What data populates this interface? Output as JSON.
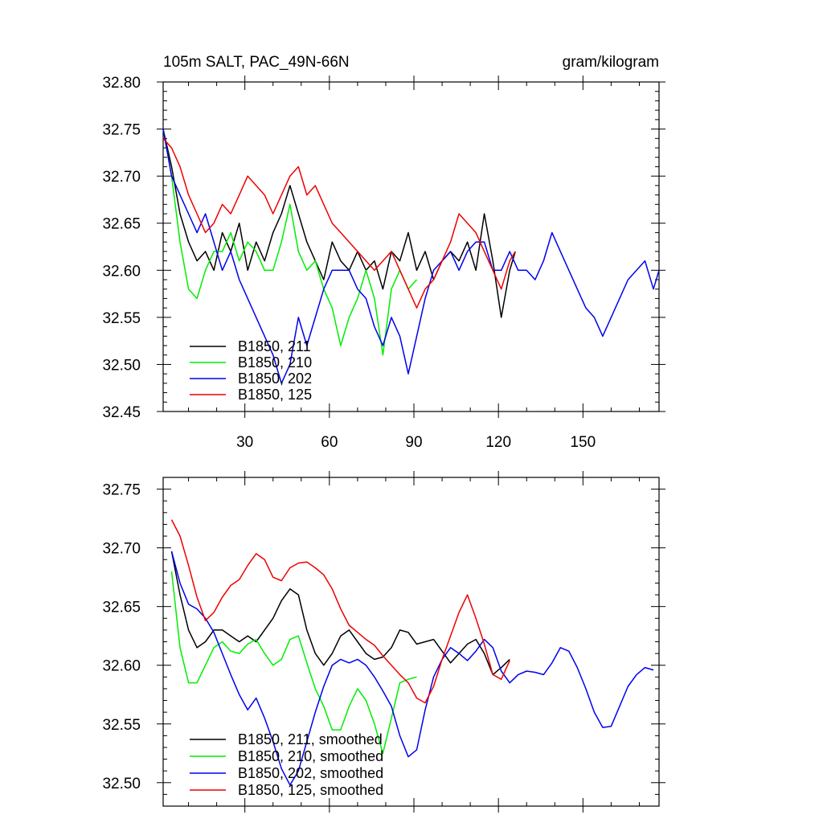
{
  "chart_data": [
    {
      "type": "line",
      "title": "105m SALT, PAC_49N-66N",
      "units": "gram/kilogram",
      "xlim": [
        1,
        177
      ],
      "ylim": [
        32.45,
        32.8
      ],
      "xticks": [
        30,
        60,
        90,
        120,
        150
      ],
      "yticks": [
        32.45,
        32.5,
        32.55,
        32.6,
        32.65,
        32.7,
        32.75,
        32.8
      ],
      "ytick_labels": [
        "32.45",
        "32.50",
        "32.55",
        "32.60",
        "32.65",
        "32.70",
        "32.75",
        "32.80"
      ],
      "legend_position": "lower-left",
      "series": [
        {
          "name": "B1850, 211",
          "color": "#000000",
          "x": [
            1,
            4,
            7,
            10,
            13,
            16,
            19,
            22,
            25,
            28,
            31,
            34,
            37,
            40,
            43,
            46,
            49,
            52,
            55,
            58,
            61,
            64,
            67,
            70,
            73,
            76,
            79,
            82,
            85,
            88,
            91,
            94,
            97,
            100,
            103,
            106,
            109,
            112,
            115,
            118,
            121,
            124,
            126
          ],
          "values": [
            32.75,
            32.71,
            32.66,
            32.63,
            32.61,
            32.62,
            32.6,
            32.64,
            32.62,
            32.65,
            32.6,
            32.63,
            32.61,
            32.64,
            32.66,
            32.69,
            32.66,
            32.63,
            32.61,
            32.59,
            32.63,
            32.61,
            32.6,
            32.62,
            32.6,
            32.61,
            32.58,
            32.62,
            32.61,
            32.64,
            32.6,
            32.62,
            32.59,
            32.61,
            32.62,
            32.61,
            32.63,
            32.6,
            32.66,
            32.61,
            32.55,
            32.6,
            32.62
          ]
        },
        {
          "name": "B1850, 210",
          "color": "#00ee00",
          "x": [
            1,
            4,
            7,
            10,
            13,
            16,
            19,
            22,
            25,
            28,
            31,
            34,
            37,
            40,
            43,
            46,
            49,
            52,
            55,
            58,
            61,
            64,
            67,
            70,
            73,
            76,
            79,
            82,
            85,
            88,
            91
          ],
          "values": [
            32.75,
            32.7,
            32.63,
            32.58,
            32.57,
            32.6,
            32.62,
            32.62,
            32.64,
            32.61,
            32.63,
            32.62,
            32.6,
            32.6,
            32.63,
            32.67,
            32.62,
            32.6,
            32.61,
            32.58,
            32.56,
            32.52,
            32.55,
            32.57,
            32.6,
            32.57,
            32.51,
            32.58,
            32.6,
            32.58,
            32.59
          ]
        },
        {
          "name": "B1850, 202",
          "color": "#0000ee",
          "x": [
            1,
            4,
            7,
            10,
            13,
            16,
            19,
            22,
            25,
            28,
            31,
            34,
            37,
            40,
            43,
            46,
            49,
            52,
            55,
            58,
            61,
            64,
            67,
            70,
            73,
            76,
            79,
            82,
            85,
            88,
            91,
            94,
            97,
            100,
            103,
            106,
            109,
            112,
            115,
            118,
            121,
            124,
            127,
            130,
            133,
            136,
            139,
            142,
            145,
            148,
            151,
            154,
            157,
            160,
            163,
            166,
            169,
            172,
            175,
            177
          ],
          "values": [
            32.75,
            32.7,
            32.68,
            32.66,
            32.64,
            32.66,
            32.63,
            32.6,
            32.62,
            32.59,
            32.57,
            32.55,
            32.53,
            32.51,
            32.48,
            32.5,
            32.55,
            32.52,
            32.55,
            32.58,
            32.6,
            32.6,
            32.6,
            32.58,
            32.57,
            32.54,
            32.52,
            32.55,
            32.53,
            32.49,
            32.53,
            32.57,
            32.6,
            32.61,
            32.62,
            32.6,
            32.62,
            32.63,
            32.63,
            32.6,
            32.6,
            32.62,
            32.6,
            32.6,
            32.59,
            32.61,
            32.64,
            32.62,
            32.6,
            32.58,
            32.56,
            32.55,
            32.53,
            32.55,
            32.57,
            32.59,
            32.6,
            32.61,
            32.58,
            32.6
          ]
        },
        {
          "name": "B1850, 125",
          "color": "#ee0000",
          "x": [
            1,
            4,
            7,
            10,
            13,
            16,
            19,
            22,
            25,
            28,
            31,
            34,
            37,
            40,
            43,
            46,
            49,
            52,
            55,
            58,
            61,
            64,
            67,
            70,
            73,
            76,
            79,
            82,
            85,
            88,
            91,
            94,
            97,
            100,
            103,
            106,
            109,
            112,
            115,
            118,
            121,
            124,
            126
          ],
          "values": [
            32.74,
            32.73,
            32.71,
            32.68,
            32.66,
            32.64,
            32.65,
            32.67,
            32.66,
            32.68,
            32.7,
            32.69,
            32.68,
            32.66,
            32.68,
            32.7,
            32.71,
            32.68,
            32.69,
            32.67,
            32.65,
            32.64,
            32.63,
            32.62,
            32.61,
            32.6,
            32.61,
            32.62,
            32.6,
            32.58,
            32.56,
            32.58,
            32.59,
            32.61,
            32.63,
            32.66,
            32.65,
            32.64,
            32.62,
            32.6,
            32.58,
            32.61,
            32.62
          ]
        }
      ]
    },
    {
      "type": "line",
      "title": "",
      "xlim": [
        1,
        177
      ],
      "ylim": [
        32.48,
        32.76
      ],
      "xticks": [
        30,
        60,
        90,
        120,
        150
      ],
      "yticks": [
        32.5,
        32.55,
        32.6,
        32.65,
        32.7,
        32.75
      ],
      "ytick_labels": [
        "32.50",
        "32.55",
        "32.60",
        "32.65",
        "32.70",
        "32.75"
      ],
      "legend_position": "lower-left",
      "series": [
        {
          "name": "B1850, 211, smoothed",
          "color": "#000000",
          "x": [
            4,
            7,
            10,
            13,
            16,
            19,
            22,
            25,
            28,
            31,
            34,
            37,
            40,
            43,
            46,
            49,
            52,
            55,
            58,
            61,
            64,
            67,
            70,
            73,
            76,
            79,
            82,
            85,
            88,
            91,
            94,
            97,
            100,
            103,
            106,
            109,
            112,
            115,
            118,
            121,
            124
          ],
          "values": [
            32.697,
            32.66,
            32.63,
            32.615,
            32.62,
            32.63,
            32.63,
            32.625,
            32.62,
            32.625,
            32.62,
            32.63,
            32.64,
            32.655,
            32.665,
            32.66,
            32.63,
            32.61,
            32.6,
            32.61,
            32.625,
            32.63,
            32.62,
            32.61,
            32.605,
            32.607,
            32.615,
            32.63,
            32.628,
            32.618,
            32.62,
            32.622,
            32.612,
            32.602,
            32.61,
            32.618,
            32.622,
            32.61,
            32.592,
            32.598,
            32.605
          ]
        },
        {
          "name": "B1850, 210, smoothed",
          "color": "#00ee00",
          "x": [
            4,
            7,
            10,
            13,
            16,
            19,
            22,
            25,
            28,
            31,
            34,
            37,
            40,
            43,
            46,
            49,
            52,
            55,
            58,
            61,
            64,
            67,
            70,
            73,
            76,
            79,
            82,
            85,
            88,
            91
          ],
          "values": [
            32.68,
            32.615,
            32.585,
            32.585,
            32.6,
            32.615,
            32.62,
            32.612,
            32.61,
            32.618,
            32.622,
            32.61,
            32.6,
            32.605,
            32.622,
            32.625,
            32.602,
            32.58,
            32.565,
            32.545,
            32.545,
            32.565,
            32.58,
            32.57,
            32.55,
            32.525,
            32.555,
            32.585,
            32.588,
            32.59
          ]
        },
        {
          "name": "B1850, 202, smoothed",
          "color": "#0000ee",
          "x": [
            4,
            7,
            10,
            13,
            16,
            19,
            22,
            25,
            28,
            31,
            34,
            37,
            40,
            43,
            46,
            49,
            52,
            55,
            58,
            61,
            64,
            67,
            70,
            73,
            76,
            79,
            82,
            85,
            88,
            91,
            94,
            97,
            100,
            103,
            106,
            109,
            112,
            115,
            118,
            121,
            124,
            127,
            130,
            133,
            136,
            139,
            142,
            145,
            148,
            151,
            154,
            157,
            160,
            163,
            166,
            169,
            172,
            175
          ],
          "values": [
            32.697,
            32.67,
            32.652,
            32.648,
            32.64,
            32.628,
            32.61,
            32.592,
            32.575,
            32.562,
            32.572,
            32.555,
            32.535,
            32.512,
            32.498,
            32.51,
            32.535,
            32.56,
            32.582,
            32.6,
            32.605,
            32.602,
            32.605,
            32.6,
            32.59,
            32.578,
            32.565,
            32.54,
            32.522,
            32.528,
            32.562,
            32.59,
            32.605,
            32.615,
            32.61,
            32.604,
            32.612,
            32.622,
            32.615,
            32.595,
            32.585,
            32.592,
            32.595,
            32.594,
            32.592,
            32.602,
            32.615,
            32.612,
            32.598,
            32.58,
            32.56,
            32.547,
            32.548,
            32.565,
            32.582,
            32.592,
            32.598,
            32.596
          ]
        },
        {
          "name": "B1850, 125, smoothed",
          "color": "#ee0000",
          "x": [
            4,
            7,
            10,
            13,
            16,
            19,
            22,
            25,
            28,
            31,
            34,
            37,
            40,
            43,
            46,
            49,
            52,
            55,
            58,
            61,
            64,
            67,
            70,
            73,
            76,
            79,
            82,
            85,
            88,
            91,
            94,
            97,
            100,
            103,
            106,
            109,
            112,
            115,
            118,
            121,
            124
          ],
          "values": [
            32.724,
            32.71,
            32.685,
            32.658,
            32.638,
            32.645,
            32.658,
            32.668,
            32.673,
            32.685,
            32.695,
            32.69,
            32.675,
            32.672,
            32.683,
            32.687,
            32.688,
            32.683,
            32.677,
            32.665,
            32.648,
            32.634,
            32.628,
            32.622,
            32.617,
            32.608,
            32.6,
            32.592,
            32.585,
            32.572,
            32.568,
            32.582,
            32.605,
            32.625,
            32.645,
            32.66,
            32.64,
            32.618,
            32.592,
            32.588,
            32.604
          ]
        }
      ]
    }
  ]
}
